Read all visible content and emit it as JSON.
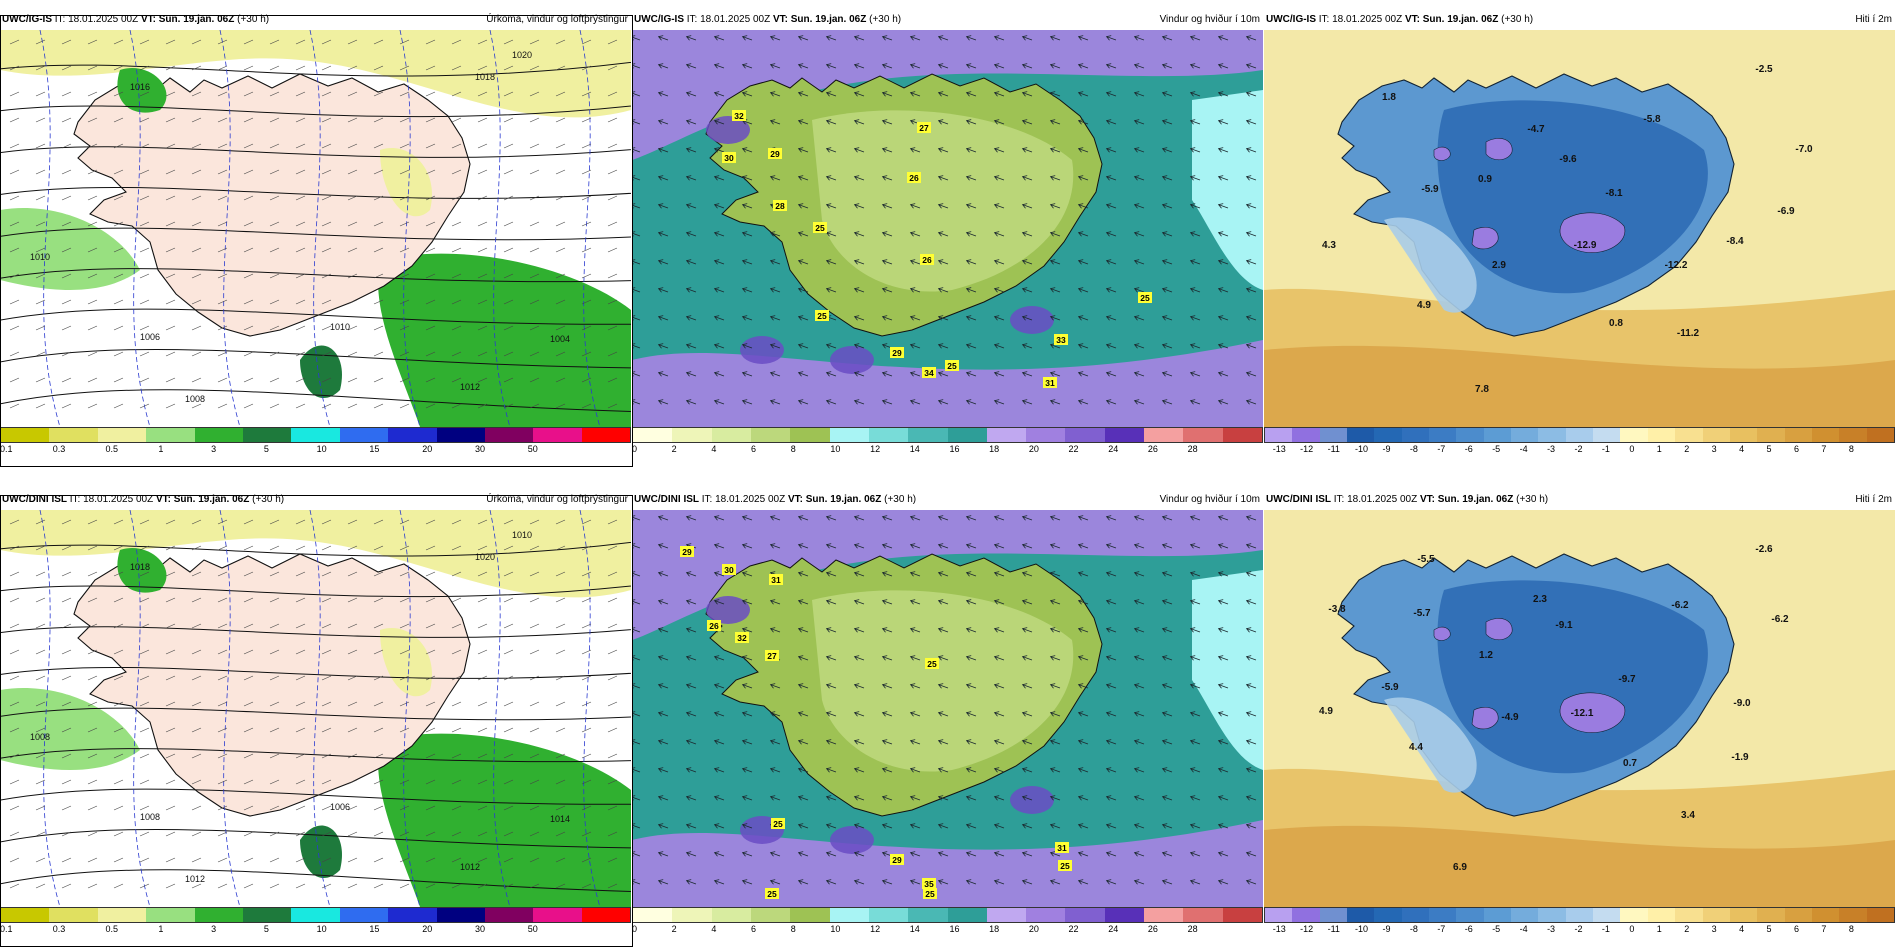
{
  "rows": [
    {
      "model": "UWC/IG-IS",
      "it_label": "IT:",
      "it": "18.01.2025 00Z",
      "vt_label": "VT:",
      "vt": "Sun. 19.jan. 06Z",
      "lead": "(+30 h)"
    },
    {
      "model": "UWC/DINI ISL",
      "it_label": "IT:",
      "it": "18.01.2025 00Z",
      "vt_label": "VT:",
      "vt": "Sun. 19.jan. 06Z",
      "lead": "(+30 h)"
    }
  ],
  "columns": [
    {
      "title": "Úrkoma, vindur og loftþrýstingur",
      "colorbar_labels": [
        "0.1",
        "0.3",
        "0.5",
        "1",
        "3",
        "5",
        "10",
        "15",
        "20",
        "30",
        "50"
      ],
      "colorbar_colors": [
        "#c8c800",
        "#e0e060",
        "#f0f0a0",
        "#98e080",
        "#30b030",
        "#1e7a3c",
        "#19e8e0",
        "#2f6cf0",
        "#1e2ad0",
        "#000080",
        "#800060",
        "#e8108a",
        "#ff0000"
      ]
    },
    {
      "title": "Vindur og hviður í 10m",
      "colorbar_labels": [
        "0",
        "2",
        "4",
        "6",
        "8",
        "10",
        "12",
        "14",
        "16",
        "18",
        "20",
        "22",
        "24",
        "26",
        "28"
      ],
      "colorbar_colors": [
        "#ffffe0",
        "#eef5b8",
        "#d8eca0",
        "#bcd87c",
        "#9ec254",
        "#a8f4f4",
        "#78dcd8",
        "#4ab8b4",
        "#2e9e98",
        "#c0a8f0",
        "#a080e0",
        "#8060d0",
        "#5830b8",
        "#f4a0a0",
        "#e07070",
        "#c84040"
      ]
    },
    {
      "title": "Hiti í 2m",
      "colorbar_labels": [
        "-13",
        "-12",
        "-11",
        "-10",
        "-9",
        "-8",
        "-7",
        "-6",
        "-5",
        "-4",
        "-3",
        "-2",
        "-1",
        "0",
        "1",
        "2",
        "3",
        "4",
        "5",
        "6",
        "7",
        "8"
      ],
      "colorbar_colors": [
        "#b8a0f0",
        "#9070e0",
        "#7090d0",
        "#1e5aa8",
        "#2468b4",
        "#3070bc",
        "#3c7cc4",
        "#4c8ccc",
        "#5c9cd4",
        "#74acdc",
        "#8cbce4",
        "#a8ccec",
        "#c4dcf0",
        "#fff8c0",
        "#fff0a8",
        "#f8e090",
        "#f0d078",
        "#e8c060",
        "#e0b050",
        "#d8a040",
        "#d09030",
        "#c88028",
        "#c07020"
      ]
    }
  ],
  "labels": {
    "wind": [
      [
        "32",
        "30",
        "29",
        "28",
        "25",
        "27",
        "26",
        "26",
        "25",
        "25",
        "29",
        "34",
        "33",
        "31",
        "25"
      ],
      [
        "29",
        "30",
        "31",
        "26",
        "32",
        "27",
        "25",
        "25",
        "29",
        "35",
        "31",
        "25",
        "25",
        "25"
      ]
    ],
    "temp": [
      [
        "1.8",
        "-2.5",
        "-4.7",
        "-5.8",
        "-7.0",
        "-9.6",
        "0.9",
        "-5.9",
        "-8.1",
        "-6.9",
        "-12.9",
        "-8.4",
        "4.3",
        "2.9",
        "-12.2",
        "4.9",
        "0.8",
        "-11.2",
        "7.8"
      ],
      [
        "-2.6",
        "-5.5",
        "-3.8",
        "-5.7",
        "2.3",
        "-6.2",
        "-6.2",
        "-9.1",
        "1.2",
        "-9.7",
        "-5.9",
        "-9.0",
        "4.9",
        "-12.1",
        "-4.9",
        "4.4",
        "0.7",
        "-1.9",
        "3.4",
        "6.9"
      ]
    ],
    "pressure": [
      [
        "1016",
        "1018",
        "1020",
        "1010",
        "1008",
        "1006",
        "1010",
        "1012",
        "1004"
      ],
      [
        "1018",
        "1020",
        "1010",
        "1008",
        "1012",
        "1008",
        "1006",
        "1012",
        "1014"
      ]
    ]
  }
}
